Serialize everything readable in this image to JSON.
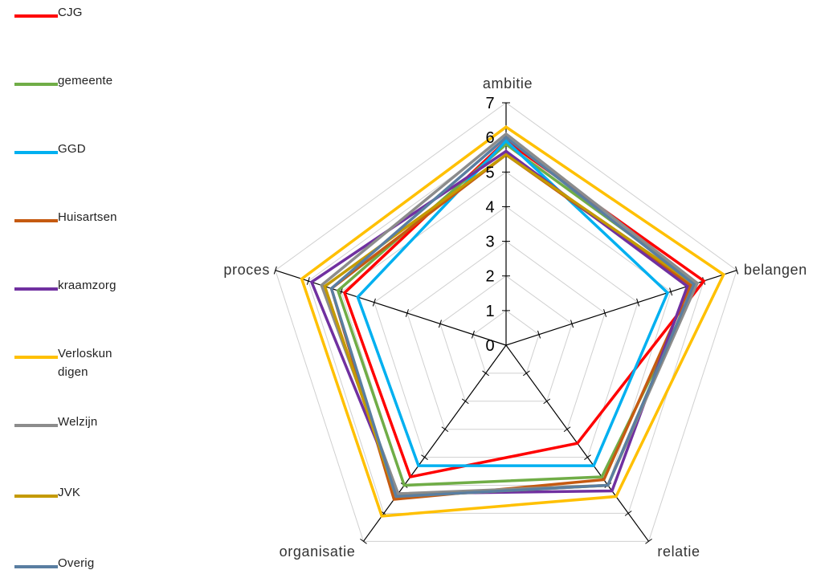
{
  "chart_data": {
    "type": "radar",
    "axes": [
      "ambitie",
      "belangen",
      "relatie",
      "organisatie",
      "proces"
    ],
    "scale": {
      "min": 0,
      "max": 7,
      "ticks": [
        0,
        1,
        2,
        3,
        4,
        5,
        6,
        7
      ]
    },
    "series": [
      {
        "name": "CJG",
        "color": "#ff0000",
        "values": [
          5.9,
          6.0,
          3.5,
          4.7,
          4.9
        ]
      },
      {
        "name": "gemeente",
        "color": "#70ad47",
        "values": [
          5.8,
          5.8,
          4.7,
          5.0,
          5.1
        ]
      },
      {
        "name": "GGD",
        "color": "#00b0f0",
        "values": [
          5.9,
          4.9,
          4.3,
          4.3,
          4.5
        ]
      },
      {
        "name": "Huisartsen",
        "color": "#c55a11",
        "values": [
          5.5,
          5.6,
          4.8,
          5.5,
          5.3
        ]
      },
      {
        "name": "kraamzorg",
        "color": "#7030a0",
        "values": [
          5.6,
          5.5,
          5.2,
          5.3,
          5.9
        ]
      },
      {
        "name": "Verloskundigen",
        "color": "#ffc000",
        "values": [
          6.3,
          6.6,
          5.4,
          6.1,
          6.2
        ]
      },
      {
        "name": "Welzijn",
        "color": "#8c8c8c",
        "values": [
          6.1,
          5.8,
          5.0,
          5.3,
          5.6
        ]
      },
      {
        "name": "JVK",
        "color": "#c49a00",
        "values": [
          5.5,
          5.7,
          5.0,
          5.4,
          5.5
        ]
      },
      {
        "name": "Overig",
        "color": "#5a7ea1",
        "values": [
          6.0,
          5.7,
          5.0,
          5.4,
          5.3
        ]
      }
    ]
  },
  "legend": {
    "items": [
      {
        "label": "CJG",
        "color": "#ff0000"
      },
      {
        "label": "gemeente",
        "color": "#70ad47"
      },
      {
        "label": "GGD",
        "color": "#00b0f0"
      },
      {
        "label": "Huisartsen",
        "color": "#c55a11"
      },
      {
        "label": "kraamzorg",
        "color": "#7030a0"
      },
      {
        "label": "Verloskundigen",
        "color": "#ffc000"
      },
      {
        "label": "Welzijn",
        "color": "#8c8c8c"
      },
      {
        "label": "JVK",
        "color": "#c49a00"
      },
      {
        "label": "Overig",
        "color": "#5a7ea1"
      }
    ]
  }
}
